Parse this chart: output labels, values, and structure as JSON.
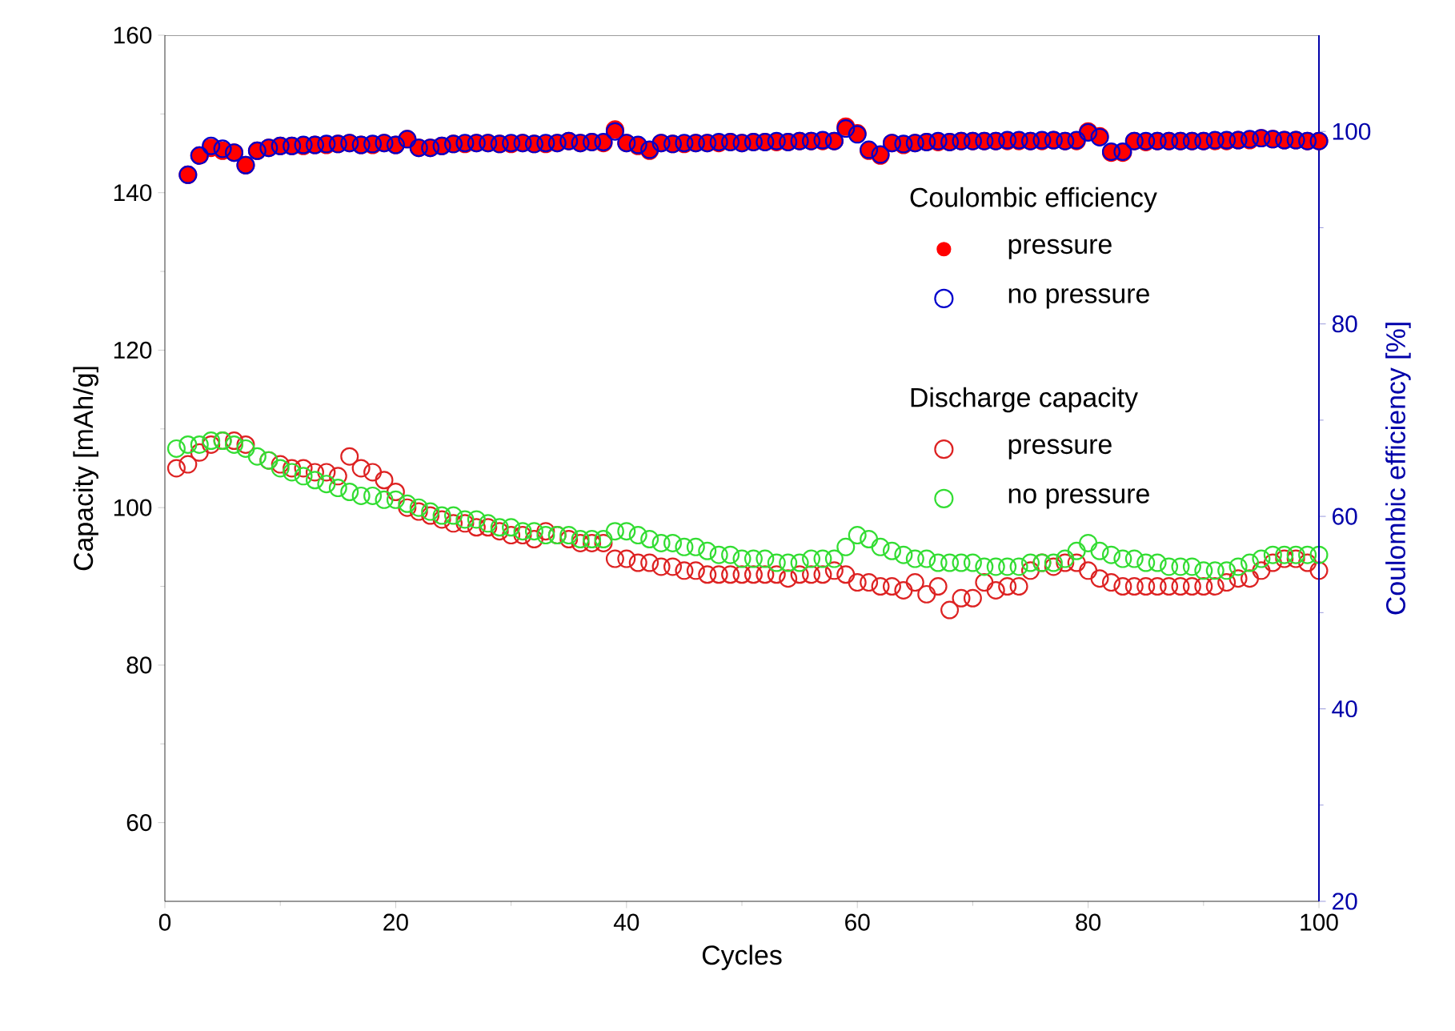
{
  "chart_data": {
    "type": "scatter",
    "xlabel": "Cycles",
    "ylabel": "Capacity [mAh/g]",
    "y2label": "Coulombic efficiency [%]",
    "annotations": [
      "Coulombic efficiency",
      "Discharge capacity"
    ],
    "xlim": [
      0,
      100
    ],
    "xticks": [
      0,
      20,
      40,
      60,
      80,
      100
    ],
    "ylim": [
      50,
      160
    ],
    "yticks": [
      60,
      80,
      100,
      120,
      140,
      160
    ],
    "y2lim": [
      20,
      110
    ],
    "y2ticks": [
      20,
      40,
      60,
      80,
      100
    ],
    "marker": "circle",
    "legend": "right",
    "grid": false,
    "series": [
      {
        "name": "pressure",
        "color": "#ff0000",
        "axis": "y2",
        "x": [
          2,
          3,
          4,
          5,
          6,
          7,
          8,
          9,
          10,
          11,
          12,
          13,
          14,
          15,
          16,
          17,
          18,
          19,
          20,
          21,
          22,
          23,
          24,
          25,
          26,
          27,
          28,
          29,
          30,
          31,
          32,
          33,
          34,
          35,
          36,
          37,
          38,
          39,
          40,
          41,
          42,
          43,
          44,
          45,
          46,
          47,
          48,
          49,
          50,
          51,
          52,
          53,
          54,
          55,
          56,
          57,
          58,
          59,
          60,
          61,
          62,
          63,
          64,
          65,
          66,
          67,
          68,
          69,
          70,
          71,
          72,
          73,
          74,
          75,
          76,
          77,
          78,
          79,
          80,
          81,
          82,
          83,
          84,
          85,
          86,
          87,
          88,
          89,
          90,
          91,
          92,
          93,
          94,
          95,
          96,
          97,
          98,
          99,
          100
        ],
        "values": [
          95.5,
          97.5,
          98.3,
          98,
          97.8,
          96.5,
          98,
          98.3,
          98.5,
          98.5,
          98.5,
          98.6,
          98.6,
          98.7,
          98.8,
          98.6,
          98.6,
          98.8,
          98.6,
          99.2,
          98.3,
          98.3,
          98.5,
          98.7,
          98.7,
          98.8,
          98.8,
          98.7,
          98.7,
          98.8,
          98.7,
          98.7,
          98.8,
          99,
          98.8,
          98.9,
          98.8,
          100.2,
          98.8,
          98.5,
          98,
          98.8,
          98.7,
          98.7,
          98.8,
          98.8,
          98.8,
          98.9,
          98.8,
          98.9,
          98.9,
          98.9,
          98.9,
          99,
          99,
          99,
          99,
          100.5,
          99.8,
          98,
          97.5,
          98.8,
          98.6,
          98.8,
          98.9,
          98.9,
          98.9,
          99,
          99,
          99,
          99,
          99,
          99,
          99,
          99,
          99.1,
          99,
          99,
          100,
          99.5,
          97.8,
          97.8,
          99,
          98.9,
          99,
          99,
          99,
          99,
          99,
          99,
          99,
          99.1,
          99.1,
          99.3,
          99.2,
          99.1,
          99.1,
          99,
          99
        ]
      },
      {
        "name": "no pressure",
        "color": "#0000cc",
        "axis": "y2",
        "x": [
          2,
          3,
          4,
          5,
          6,
          7,
          8,
          9,
          10,
          11,
          12,
          13,
          14,
          15,
          16,
          17,
          18,
          19,
          20,
          21,
          22,
          23,
          24,
          25,
          26,
          27,
          28,
          29,
          30,
          31,
          32,
          33,
          34,
          35,
          36,
          37,
          38,
          39,
          40,
          41,
          42,
          43,
          44,
          45,
          46,
          47,
          48,
          49,
          50,
          51,
          52,
          53,
          54,
          55,
          56,
          57,
          58,
          59,
          60,
          61,
          62,
          63,
          64,
          65,
          66,
          67,
          68,
          69,
          70,
          71,
          72,
          73,
          74,
          75,
          76,
          77,
          78,
          79,
          80,
          81,
          82,
          83,
          84,
          85,
          86,
          87,
          88,
          89,
          90,
          91,
          92,
          93,
          94,
          95,
          96,
          97,
          98,
          99,
          100
        ],
        "values": [
          95.5,
          97.5,
          98.5,
          98.2,
          97.8,
          96.5,
          98,
          98.3,
          98.5,
          98.5,
          98.6,
          98.6,
          98.7,
          98.7,
          98.8,
          98.6,
          98.7,
          98.8,
          98.6,
          99.2,
          98.3,
          98.3,
          98.5,
          98.7,
          98.8,
          98.8,
          98.8,
          98.7,
          98.8,
          98.8,
          98.7,
          98.8,
          98.8,
          99,
          98.8,
          98.9,
          98.9,
          100,
          98.8,
          98.6,
          98.1,
          98.8,
          98.7,
          98.8,
          98.8,
          98.8,
          98.9,
          98.9,
          98.8,
          98.9,
          98.9,
          99,
          98.9,
          99,
          99,
          99.1,
          99,
          100.3,
          99.7,
          98.1,
          97.6,
          98.8,
          98.7,
          98.8,
          98.9,
          99,
          98.9,
          99,
          99,
          99,
          99,
          99.1,
          99.1,
          99,
          99.1,
          99.1,
          99,
          99.1,
          99.9,
          99.4,
          97.9,
          97.9,
          99,
          99,
          99,
          99,
          99,
          99,
          99,
          99.1,
          99.1,
          99.1,
          99.2,
          99.3,
          99.2,
          99.1,
          99.1,
          99,
          99
        ]
      },
      {
        "name": "pressure",
        "color": "#dd2222",
        "axis": "y",
        "x": [
          1,
          2,
          3,
          4,
          5,
          6,
          7,
          8,
          9,
          10,
          11,
          12,
          13,
          14,
          15,
          16,
          17,
          18,
          19,
          20,
          21,
          22,
          23,
          24,
          25,
          26,
          27,
          28,
          29,
          30,
          31,
          32,
          33,
          34,
          35,
          36,
          37,
          38,
          39,
          40,
          41,
          42,
          43,
          44,
          45,
          46,
          47,
          48,
          49,
          50,
          51,
          52,
          53,
          54,
          55,
          56,
          57,
          58,
          59,
          60,
          61,
          62,
          63,
          64,
          65,
          66,
          67,
          68,
          69,
          70,
          71,
          72,
          73,
          74,
          75,
          76,
          77,
          78,
          79,
          80,
          81,
          82,
          83,
          84,
          85,
          86,
          87,
          88,
          89,
          90,
          91,
          92,
          93,
          94,
          95,
          96,
          97,
          98,
          99,
          100
        ],
        "values": [
          105,
          105.5,
          107,
          108,
          108.5,
          108.5,
          108,
          null,
          106,
          105.5,
          105,
          105,
          104.5,
          104.5,
          104,
          106.5,
          105,
          104.5,
          103.5,
          102,
          100,
          99.5,
          99,
          98.5,
          98,
          98,
          97.5,
          97.5,
          97,
          96.5,
          96.5,
          96,
          97,
          96.5,
          96,
          95.5,
          95.5,
          95.5,
          93.5,
          93.5,
          93,
          93,
          92.5,
          92.5,
          92,
          92,
          91.5,
          91.5,
          91.5,
          91.5,
          91.5,
          91.5,
          91.5,
          91,
          91.5,
          91.5,
          91.5,
          92,
          91.5,
          90.5,
          90.5,
          90,
          90,
          89.5,
          90.5,
          89,
          90,
          87,
          88.5,
          88.5,
          90.5,
          89.5,
          90,
          90,
          92,
          93,
          92.5,
          93,
          93,
          92,
          91,
          90.5,
          90,
          90,
          90,
          90,
          90,
          90,
          90,
          90,
          90,
          90.5,
          91,
          91,
          92,
          93,
          93.5,
          93.5,
          93,
          92
        ]
      },
      {
        "name": "no pressure",
        "color": "#33dd33",
        "axis": "y",
        "x": [
          1,
          2,
          3,
          4,
          5,
          6,
          7,
          8,
          9,
          10,
          11,
          12,
          13,
          14,
          15,
          16,
          17,
          18,
          19,
          20,
          21,
          22,
          23,
          24,
          25,
          26,
          27,
          28,
          29,
          30,
          31,
          32,
          33,
          34,
          35,
          36,
          37,
          38,
          39,
          40,
          41,
          42,
          43,
          44,
          45,
          46,
          47,
          48,
          49,
          50,
          51,
          52,
          53,
          54,
          55,
          56,
          57,
          58,
          59,
          60,
          61,
          62,
          63,
          64,
          65,
          66,
          67,
          68,
          69,
          70,
          71,
          72,
          73,
          74,
          75,
          76,
          77,
          78,
          79,
          80,
          81,
          82,
          83,
          84,
          85,
          86,
          87,
          88,
          89,
          90,
          91,
          92,
          93,
          94,
          95,
          96,
          97,
          98,
          99,
          100
        ],
        "values": [
          107.5,
          108,
          108,
          108.5,
          108.5,
          108,
          107.5,
          106.5,
          106,
          105,
          104.5,
          104,
          103.5,
          103,
          102.5,
          102,
          101.5,
          101.5,
          101,
          101,
          100.5,
          100,
          99.5,
          99,
          99,
          98.5,
          98.5,
          98,
          97.5,
          97.5,
          97,
          97,
          96.5,
          96.5,
          96.5,
          96,
          96,
          96,
          97,
          97,
          96.5,
          96,
          95.5,
          95.5,
          95,
          95,
          94.5,
          94,
          94,
          93.5,
          93.5,
          93.5,
          93,
          93,
          93,
          93.5,
          93.5,
          93.5,
          95,
          96.5,
          96,
          95,
          94.5,
          94,
          93.5,
          93.5,
          93,
          93,
          93,
          93,
          92.5,
          92.5,
          92.5,
          92.5,
          93,
          93,
          93,
          93.5,
          94.5,
          95.5,
          94.5,
          94,
          93.5,
          93.5,
          93,
          93,
          92.5,
          92.5,
          92.5,
          92,
          92,
          92,
          92.5,
          93,
          93.5,
          94,
          94,
          94,
          94,
          94
        ]
      }
    ]
  }
}
